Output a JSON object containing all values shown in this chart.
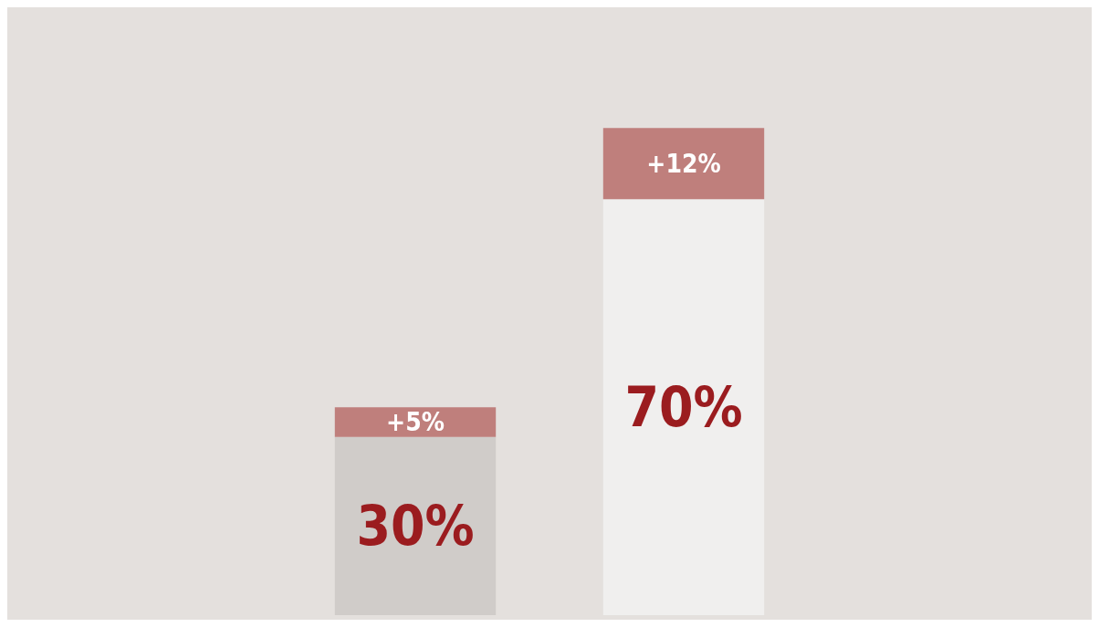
{
  "chart_data": {
    "type": "bar",
    "stacked": true,
    "categories": [
      null,
      null
    ],
    "series": [
      {
        "colors": [
          "#d0ccc9",
          "#f0efee"
        ],
        "values": [
          30,
          70
        ],
        "value_labels": [
          "30%",
          "70%"
        ]
      },
      {
        "color": "#bf7f7c",
        "values": [
          5,
          12
        ],
        "value_labels": [
          "+5%",
          "+12%"
        ]
      }
    ]
  }
}
